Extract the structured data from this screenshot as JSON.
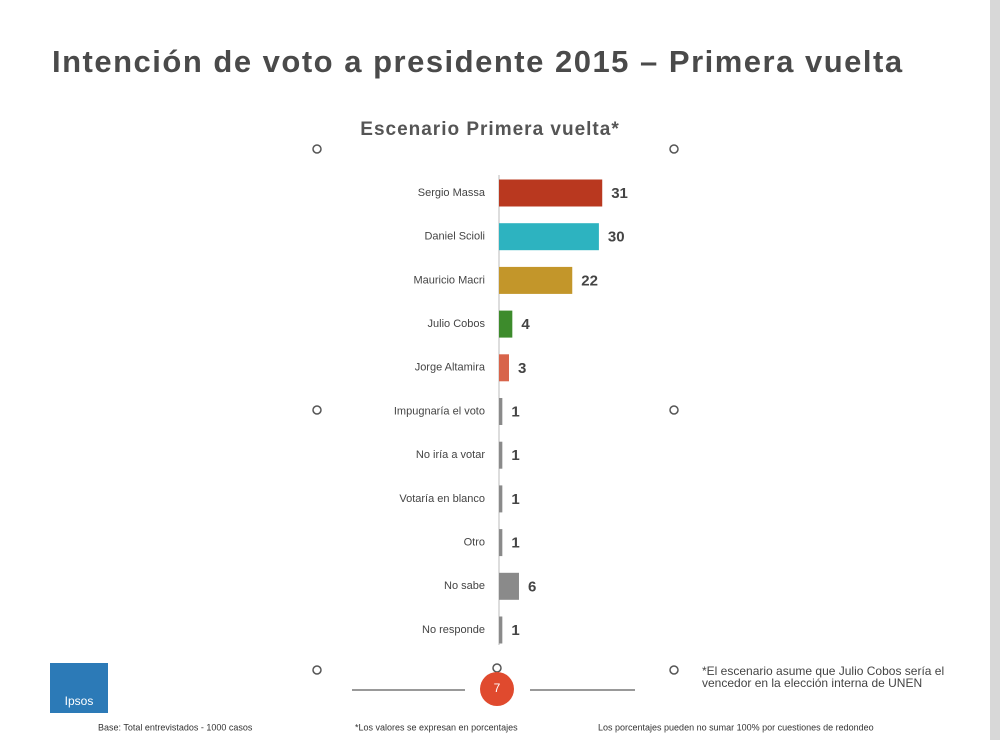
{
  "chart_data": {
    "type": "bar",
    "orientation": "horizontal",
    "title": "Intención de voto a presidente 2015 – Primera vuelta",
    "subtitle": "Escenario Primera vuelta*",
    "categories": [
      "Sergio Massa",
      "Daniel Scioli",
      "Mauricio Macri",
      "Julio Cobos",
      "Jorge Altamira",
      "Impugnaría el voto",
      "No iría a votar",
      "Votaría en blanco",
      "Otro",
      "No sabe",
      "No responde"
    ],
    "values": [
      31,
      30,
      22,
      4,
      3,
      1,
      1,
      1,
      1,
      6,
      1
    ],
    "colors": [
      "#b9381f",
      "#2db3c0",
      "#c3962a",
      "#3d8b2c",
      "#d8644a",
      "#8a8a8a",
      "#8a8a8a",
      "#8a8a8a",
      "#8a8a8a",
      "#8a8a8a",
      "#8a8a8a"
    ],
    "footnote": "*El escenario asume que Julio Cobos sería el vencedor en la elección interna de UNEN",
    "base_note": "Base: Total entrevistados - 1000 casos",
    "percent_note": "*Los valores se expresan en porcentajes",
    "rounding_note": "Los porcentajes pueden no sumar 100% por cuestiones de redondeo",
    "page_number": "7",
    "logo": "Ipsos"
  }
}
